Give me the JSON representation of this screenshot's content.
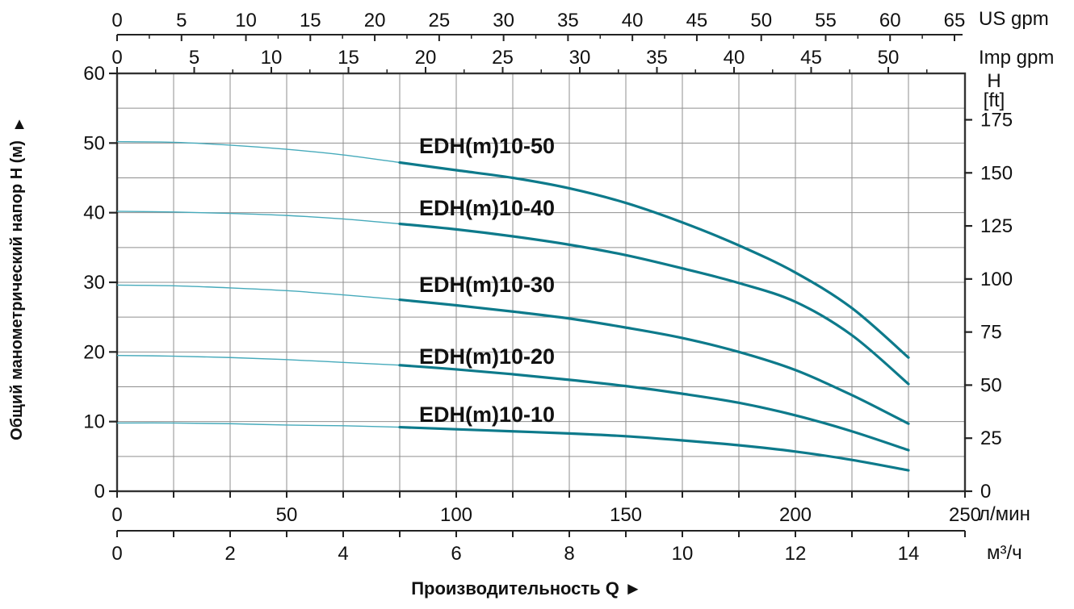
{
  "colors": {
    "curve": "#0d7a8b",
    "curve_light": "#46aabb",
    "grid": "#8f8f8f",
    "border": "#333333",
    "tick": "#222222",
    "text": "#111111",
    "background": "#ffffff"
  },
  "chart_data": {
    "type": "line",
    "title": "",
    "xlabel": "Производительность Q  ►",
    "x_axes": [
      {
        "id": "us_gpm",
        "unit": "US gpm",
        "ticks": [
          0,
          5,
          10,
          15,
          20,
          25,
          30,
          35,
          40,
          45,
          50,
          55,
          60,
          65
        ],
        "tick_step": 5,
        "minor_step": 2.5,
        "minor_max": 62.5
      },
      {
        "id": "imp_gpm",
        "unit": "Imp gpm",
        "ticks": [
          0,
          5,
          10,
          15,
          20,
          25,
          30,
          35,
          40,
          45,
          50
        ],
        "tick_step": 5,
        "minor_step": 2.5,
        "minor_max": 52.5
      },
      {
        "id": "l_min",
        "unit": "л/мин",
        "ticks": [
          0,
          50,
          100,
          150,
          200,
          250
        ]
      },
      {
        "id": "m3_h",
        "unit": "м³/ч",
        "ticks": [
          0,
          2,
          4,
          6,
          8,
          10,
          12,
          14
        ],
        "minor_step": 1,
        "axis_max": 15
      }
    ],
    "y_axes": [
      {
        "id": "head_m",
        "title": "Общий манометрический напор H (м)",
        "arrow": "▲",
        "ticks": [
          0,
          10,
          20,
          30,
          40,
          50,
          60
        ],
        "range": [
          0,
          60
        ],
        "grid_step": 5
      },
      {
        "id": "head_ft",
        "header": "H",
        "header_unit": "[ft]",
        "ticks": [
          0,
          25,
          50,
          75,
          100,
          125,
          150,
          175
        ]
      }
    ],
    "grid": {
      "x_step_m3h": 1,
      "y_step_m": 5
    },
    "series_split_q": 5,
    "series": [
      {
        "name": "EDH(m)10-50",
        "points": [
          [
            0,
            50.2
          ],
          [
            1,
            50.1
          ],
          [
            2,
            49.7
          ],
          [
            3,
            49.1
          ],
          [
            4,
            48.3
          ],
          [
            5,
            47.2
          ],
          [
            6,
            46.1
          ],
          [
            7,
            45.0
          ],
          [
            8,
            43.5
          ],
          [
            9,
            41.4
          ],
          [
            10,
            38.6
          ],
          [
            11,
            35.3
          ],
          [
            12,
            31.4
          ],
          [
            13,
            26.3
          ],
          [
            14,
            19.2
          ]
        ]
      },
      {
        "name": "EDH(m)10-40",
        "points": [
          [
            0,
            40.2
          ],
          [
            1,
            40.1
          ],
          [
            2,
            39.9
          ],
          [
            3,
            39.6
          ],
          [
            4,
            39.1
          ],
          [
            5,
            38.4
          ],
          [
            6,
            37.6
          ],
          [
            7,
            36.6
          ],
          [
            8,
            35.4
          ],
          [
            9,
            33.9
          ],
          [
            10,
            32.0
          ],
          [
            11,
            29.9
          ],
          [
            12,
            27.2
          ],
          [
            13,
            22.4
          ],
          [
            14,
            15.4
          ]
        ]
      },
      {
        "name": "EDH(m)10-30",
        "points": [
          [
            0,
            29.6
          ],
          [
            1,
            29.5
          ],
          [
            2,
            29.2
          ],
          [
            3,
            28.8
          ],
          [
            4,
            28.2
          ],
          [
            5,
            27.5
          ],
          [
            6,
            26.7
          ],
          [
            7,
            25.8
          ],
          [
            8,
            24.8
          ],
          [
            9,
            23.5
          ],
          [
            10,
            22.0
          ],
          [
            11,
            20.0
          ],
          [
            12,
            17.4
          ],
          [
            13,
            13.8
          ],
          [
            14,
            9.7
          ]
        ]
      },
      {
        "name": "EDH(m)10-20",
        "points": [
          [
            0,
            19.5
          ],
          [
            1,
            19.4
          ],
          [
            2,
            19.2
          ],
          [
            3,
            18.9
          ],
          [
            4,
            18.5
          ],
          [
            5,
            18.1
          ],
          [
            6,
            17.5
          ],
          [
            7,
            16.8
          ],
          [
            8,
            16.0
          ],
          [
            9,
            15.1
          ],
          [
            10,
            14.0
          ],
          [
            11,
            12.7
          ],
          [
            12,
            10.9
          ],
          [
            13,
            8.6
          ],
          [
            14,
            5.9
          ]
        ]
      },
      {
        "name": "EDH(m)10-10",
        "points": [
          [
            0,
            9.8
          ],
          [
            1,
            9.8
          ],
          [
            2,
            9.7
          ],
          [
            3,
            9.5
          ],
          [
            4,
            9.4
          ],
          [
            5,
            9.2
          ],
          [
            6,
            8.9
          ],
          [
            7,
            8.6
          ],
          [
            8,
            8.3
          ],
          [
            9,
            7.9
          ],
          [
            10,
            7.3
          ],
          [
            11,
            6.6
          ],
          [
            12,
            5.7
          ],
          [
            13,
            4.5
          ],
          [
            14,
            3.0
          ]
        ]
      }
    ]
  }
}
